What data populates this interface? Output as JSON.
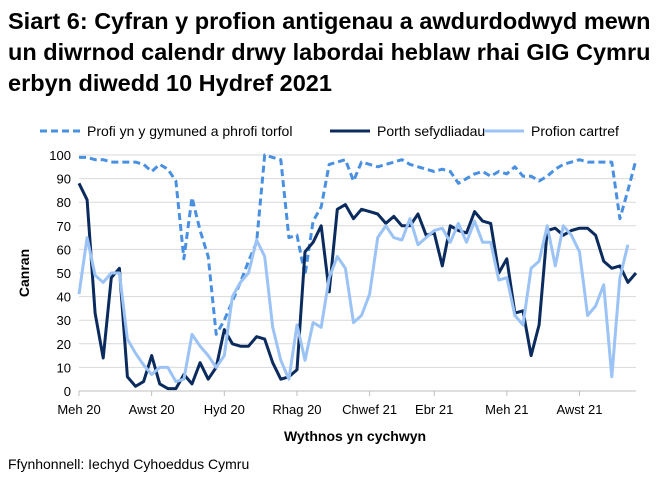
{
  "title": "Siart 6: Cyfran y profion antigenau a awdurdodwyd mewn un diwrnod calendr drwy labordai heblaw rhai GIG Cymru erbyn diwedd 10 Hydref 2021",
  "source": "Ffynhonnell: Iechyd Cyhoeddus Cymru",
  "colors": {
    "community": "#4a90e2",
    "care_homes": "#0b2b5e",
    "care_home_tests": "#9cc3f5"
  },
  "chart_data": {
    "type": "line",
    "xlabel": "Wythnos yn cychwyn",
    "ylabel": "Canran",
    "ylim": [
      0,
      100
    ],
    "yticks": [
      0,
      10,
      20,
      30,
      40,
      50,
      60,
      70,
      80,
      90,
      100
    ],
    "xticks": [
      {
        "label": "Meh 20",
        "week": 0
      },
      {
        "label": "Awst 20",
        "week": 9
      },
      {
        "label": "Hyd 20",
        "week": 18
      },
      {
        "label": "Rhag 20",
        "week": 27
      },
      {
        "label": "Chwef 21",
        "week": 36
      },
      {
        "label": "Ebr 21",
        "week": 44
      },
      {
        "label": "Meh 21",
        "week": 53
      },
      {
        "label": "Awst 21",
        "week": 62
      }
    ],
    "x_weeks": 69,
    "legend_position": "top",
    "series": [
      {
        "name": "Profi yn y gymuned a phrofi torfol",
        "style": "dashed",
        "values": [
          99,
          99,
          98,
          98,
          97,
          97,
          97,
          97,
          96,
          93,
          96,
          94,
          89,
          56,
          82,
          68,
          57,
          24,
          30,
          38,
          46,
          55,
          63,
          100,
          99,
          98,
          65,
          66,
          49,
          72,
          78,
          96,
          97,
          98,
          89,
          97,
          96,
          95,
          96,
          97,
          98,
          96,
          95,
          94,
          93,
          94,
          93,
          88,
          90,
          92,
          93,
          91,
          93,
          92,
          95,
          91,
          91,
          89,
          91,
          94,
          96,
          97,
          98,
          97,
          97,
          97,
          97,
          73,
          85,
          98
        ]
      },
      {
        "name": "Porth sefydliadau",
        "style": "solid",
        "values": [
          88,
          81,
          33,
          14,
          48,
          52,
          6,
          2,
          4,
          15,
          3,
          1,
          1,
          7,
          3,
          12,
          5,
          10,
          26,
          20,
          19,
          19,
          23,
          22,
          12,
          5,
          6,
          9,
          59,
          63,
          70,
          42,
          77,
          79,
          73,
          77,
          76,
          75,
          71,
          74,
          70,
          70,
          75,
          66,
          67,
          53,
          70,
          68,
          67,
          76,
          72,
          71,
          50,
          56,
          33,
          34,
          15,
          28,
          68,
          69,
          66,
          68,
          69,
          69,
          66,
          55,
          52,
          53,
          46,
          50
        ]
      },
      {
        "name": "Profion cartref",
        "style": "solid",
        "values": [
          41,
          65,
          49,
          46,
          50,
          50,
          22,
          16,
          11,
          7,
          10,
          10,
          4,
          5,
          24,
          19,
          15,
          10,
          15,
          40,
          46,
          50,
          64,
          57,
          27,
          13,
          5,
          28,
          13,
          29,
          27,
          48,
          57,
          52,
          29,
          32,
          41,
          65,
          70,
          65,
          64,
          73,
          62,
          65,
          68,
          69,
          63,
          71,
          63,
          72,
          63,
          63,
          47,
          48,
          32,
          28,
          52,
          55,
          70,
          53,
          70,
          66,
          59,
          32,
          36,
          45,
          6,
          48,
          62
        ]
      }
    ]
  }
}
